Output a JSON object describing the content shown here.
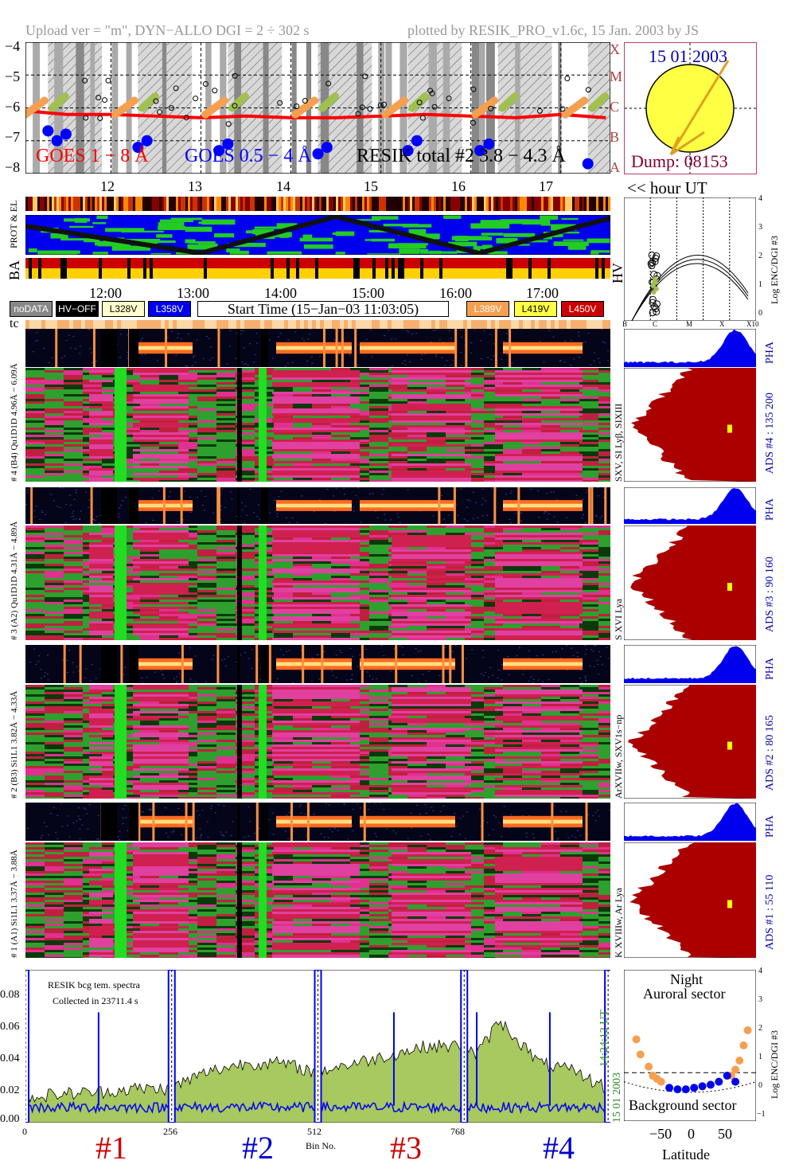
{
  "header": {
    "left": "Upload ver = \"m\", DYN−ALLO DGI =   2 ÷ 302 s",
    "right": "plotted by RESIK_PRO_v1.6c, 15 Jan. 2003 by JS"
  },
  "goes_panel": {
    "yticks": [
      "−4",
      "−5",
      "−6",
      "−7",
      "−8"
    ],
    "class_labels": [
      "X",
      "M",
      "C",
      "B",
      "A"
    ],
    "legend_goes18": "GOES 1 − 8 Å",
    "legend_goes054": "GOES 0.5 − 4 Å",
    "legend_resik": "RESIK total #2  3.8 − 4.3 Å",
    "hours": [
      "12",
      "13",
      "14",
      "15",
      "16",
      "17"
    ],
    "hour_axis_label": "<< hour UT",
    "colors": {
      "goes18": "#ff0000",
      "goes054": "#0000ff",
      "resik": "#000000",
      "flare_orange": "#f5a050",
      "flare_green": "#a0c050"
    }
  },
  "sun_panel": {
    "date": "15 01 2003",
    "dump": "Dump: 08153"
  },
  "status_panel": {
    "label_prot": "PROT & EL",
    "label_ba": "BA",
    "label_hv": "HV",
    "times": [
      "12:00",
      "13:00",
      "14:00",
      "15:00",
      "16:00",
      "17:00"
    ]
  },
  "legend": {
    "nodata": "noDATA",
    "hvoff": "HV−OFF",
    "l328": "L328V",
    "l358": "L358V",
    "start_time": "Start Time (15−Jan−03 11:03:05)",
    "l389": "L389V",
    "l419": "L419V",
    "l450": "L450V",
    "tc": "tc"
  },
  "enc_panel": {
    "ylabel": "Log ENC/DGI #3",
    "yticks": [
      "4",
      "3",
      "2",
      "1",
      "0"
    ],
    "xticks": [
      "B",
      "C",
      "M",
      "X",
      "X10"
    ]
  },
  "channels": [
    {
      "id": "4",
      "pha_range": "Qu1D1D 4.96Å − 6.09Å",
      "label": "# 4 (B4) Qu1D1D 4.96Å − 6.09Å",
      "lines": "SXV, SI Lyβ, SIXIII",
      "ads": "ADS #4 :   135 200",
      "pha": "PHA"
    },
    {
      "id": "3",
      "pha_range": "4.31Å − 4.89Å",
      "label": "# 3 (A2) Qu1D1D 4.31Å − 4.89Å",
      "lines": "S XVI Lya",
      "ads": "ADS #3 :   90 160",
      "pha": "PHA"
    },
    {
      "id": "2",
      "pha_range": "3.82Å − 4.33Å",
      "label": "# 2 (B3) Si1L1 3.82Å − 4.33Å",
      "lines": "ArXVIIw, SXV1s−np",
      "ads": "ADS #2 :   80 165",
      "pha": "PHA"
    },
    {
      "id": "1",
      "pha_range": "3.37Å − 3.88Å",
      "label": "# 1 (A1) Si1L1 3.37Å − 3.88Å",
      "lines": "K XVIIIw, Ar Lya",
      "ads": "ADS #1 :   55 110",
      "pha": "PHA"
    }
  ],
  "spectrum_panel": {
    "note1": "RESIK bcg tem. spectra",
    "note2": "Collected in 23711.4 s",
    "yticks": [
      "0.08",
      "0.06",
      "0.04",
      "0.02",
      "0.00"
    ],
    "xticks": [
      "0",
      "256",
      "512",
      "768"
    ],
    "xlabel": "Bin No.",
    "side_time": "14:24:12 UT",
    "side_date": "15 01 2003",
    "channel_labels": [
      "#1",
      "#2",
      "#3",
      "#4"
    ],
    "channel_colors": [
      "#cc0000",
      "#0000cc",
      "#cc0000",
      "#0000cc"
    ]
  },
  "latitude_panel": {
    "title1": "Night",
    "title2": "Auroral sector",
    "bottom_label": "Background sector",
    "xlabel": "Latitude",
    "xticks": [
      "−50",
      "0",
      "50"
    ],
    "ylabel": "Log ENC/DGI #3",
    "yticks": [
      "4",
      "3",
      "2",
      "1",
      "0",
      "−1"
    ]
  },
  "chart_data": [
    {
      "type": "scatter",
      "title": "",
      "xlabel": "hour UT",
      "ylabel": "",
      "xlim": [
        11.05,
        17.55
      ],
      "ylim": [
        -8,
        -4
      ],
      "series": [
        {
          "name": "GOES 1 − 8 Å",
          "x": [
            11.1,
            11.5,
            12.0,
            12.5,
            13.0,
            13.5,
            14.0,
            14.5,
            15.0,
            15.5,
            16.0,
            16.5,
            17.0,
            17.5
          ],
          "y": [
            -6.1,
            -6.2,
            -6.2,
            -6.25,
            -6.3,
            -6.25,
            -6.3,
            -6.3,
            -6.25,
            -6.2,
            -6.25,
            -6.3,
            -6.2,
            -6.3
          ]
        },
        {
          "name": "GOES 0.5 − 4 Å",
          "x": [
            11.3,
            11.4,
            11.5,
            12.3,
            12.4,
            13.2,
            13.3,
            14.3,
            14.4,
            15.3,
            15.4,
            16.1,
            16.2,
            17.3
          ],
          "y": [
            -6.7,
            -7.0,
            -6.8,
            -7.2,
            -7.0,
            -7.3,
            -7.1,
            -7.4,
            -7.2,
            -7.3,
            -7.0,
            -7.3,
            -7.1,
            -7.7
          ]
        }
      ]
    },
    {
      "type": "line",
      "title": "",
      "xlabel": "Bin No.",
      "ylabel": "",
      "xlim": [
        0,
        1024
      ],
      "ylim": [
        0,
        0.09
      ],
      "series": [
        {
          "name": "",
          "x": [
            0,
            64,
            128,
            192,
            250,
            320,
            384,
            448,
            505,
            576,
            640,
            704,
            765,
            790,
            830,
            900,
            960,
            1020
          ],
          "y": [
            0.015,
            0.017,
            0.018,
            0.02,
            0.02,
            0.03,
            0.035,
            0.035,
            0.03,
            0.035,
            0.04,
            0.045,
            0.045,
            0.04,
            0.06,
            0.035,
            0.03,
            0.02
          ]
        },
        {
          "name": "",
          "x": [
            0,
            64,
            128,
            192,
            256,
            320,
            384,
            448,
            512,
            576,
            640,
            704,
            768,
            830,
            900,
            960,
            1020
          ],
          "y": [
            0.008,
            0.008,
            0.008,
            0.009,
            0.01,
            0.01,
            0.01,
            0.01,
            0.009,
            0.009,
            0.009,
            0.009,
            0.008,
            0.008,
            0.008,
            0.008,
            0.008
          ]
        }
      ]
    },
    {
      "type": "scatter",
      "title": "",
      "xlabel": "Latitude",
      "ylabel": "Log ENC/DGI #3",
      "xlim": [
        -75,
        85
      ],
      "ylim": [
        -1,
        4
      ],
      "series": [
        {
          "name": "",
          "x": [
            -60,
            -55,
            -45,
            -40,
            -35,
            -30,
            55,
            60,
            65,
            70,
            75
          ],
          "y": [
            1.7,
            1.2,
            0.8,
            0.5,
            0.4,
            0.3,
            0.5,
            0.7,
            1.0,
            1.5,
            2.0
          ]
        },
        {
          "name": "",
          "x": [
            -20,
            -10,
            0,
            10,
            20,
            30,
            40,
            50,
            60
          ],
          "y": [
            0.1,
            0.05,
            0.05,
            0.1,
            0.15,
            0.2,
            0.3,
            0.5,
            0.3
          ]
        }
      ]
    }
  ]
}
